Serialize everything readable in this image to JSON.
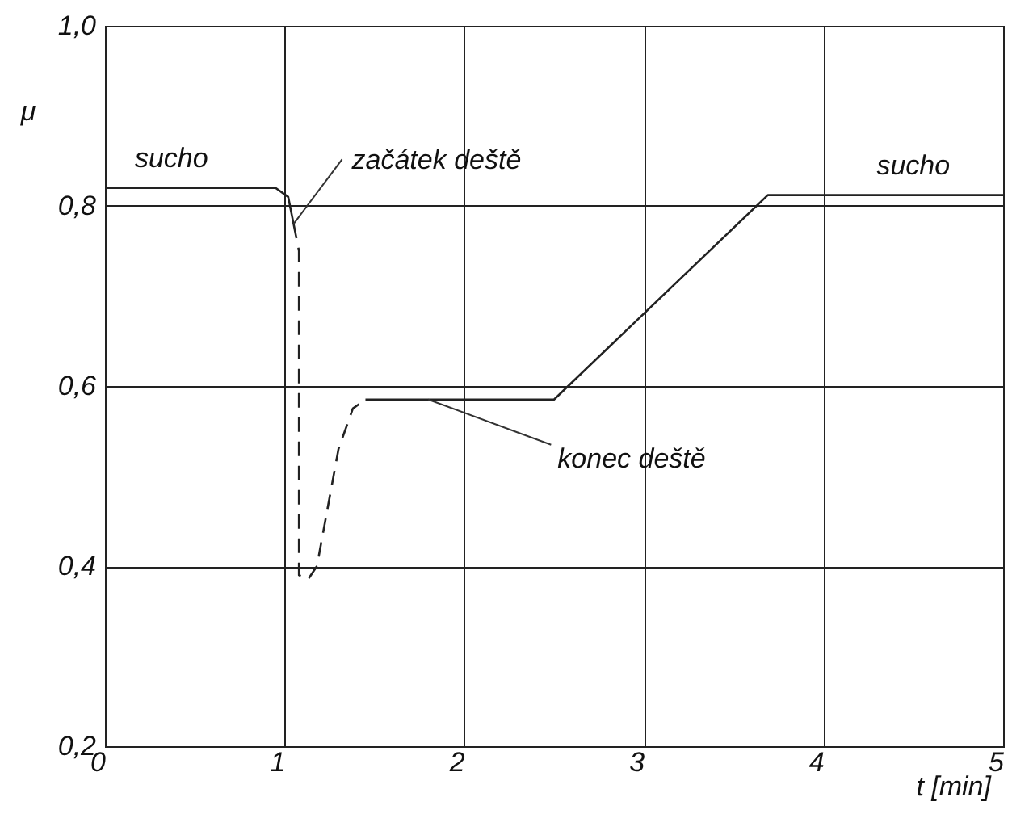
{
  "chart_data": {
    "type": "line",
    "xlabel": "t [min]",
    "ylabel": "μ",
    "xlim": [
      0,
      5
    ],
    "xticks": [
      0,
      1,
      2,
      3,
      4,
      5
    ],
    "ylim": [
      0.2,
      1.0
    ],
    "yticks": [
      {
        "value": 0.2,
        "label": "0,2"
      },
      {
        "value": 0.4,
        "label": "0,4"
      },
      {
        "value": 0.6,
        "label": "0,6"
      },
      {
        "value": 0.8,
        "label": "0,8"
      },
      {
        "value": 1.0,
        "label": "1,0"
      }
    ],
    "grid": true,
    "marker": "none",
    "series": [
      {
        "color": "#222222",
        "line_style": "solid",
        "x": [
          0,
          0.95,
          1.02,
          1.05,
          1.06,
          1.45,
          1.5,
          2.5,
          3.69,
          5
        ],
        "values": [
          0.82,
          0.82,
          0.81,
          0.78,
          null,
          0.585,
          0.585,
          0.585,
          0.812,
          0.812
        ]
      },
      {
        "color": "#222222",
        "line_style": "dashed",
        "x": [
          1.05,
          1.08,
          1.08,
          1.13,
          1.18,
          1.3,
          1.38,
          1.45
        ],
        "values": [
          0.78,
          0.75,
          0.39,
          0.385,
          0.4,
          0.53,
          0.575,
          0.585
        ]
      }
    ],
    "annotations": [
      {
        "text": "sucho",
        "x": 0.37,
        "y": 0.82
      },
      {
        "text": "začátek deště",
        "x": 1.05,
        "y": 0.78
      },
      {
        "text": "konec deště",
        "x": 1.8,
        "y": 0.585
      },
      {
        "text": "sucho",
        "x": 4.5,
        "y": 0.812
      }
    ]
  }
}
